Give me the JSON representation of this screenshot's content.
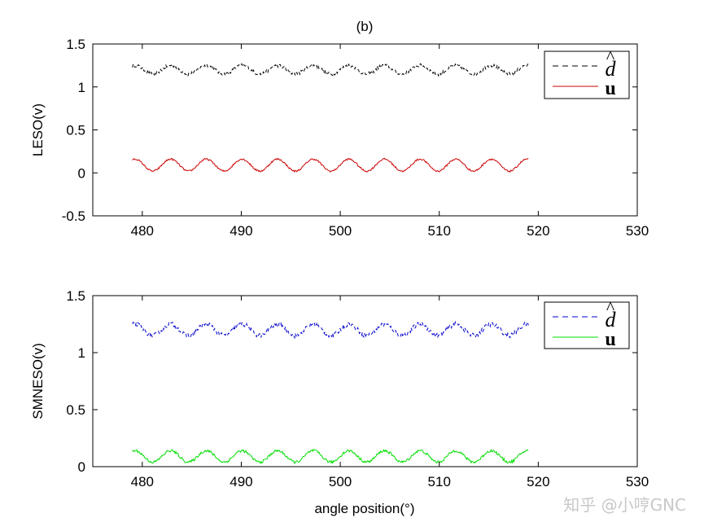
{
  "figure_title": "(b)",
  "watermark": "知乎 @小哼GNC",
  "chart_data": [
    {
      "type": "line",
      "ylabel": "LESO(v)",
      "xlabel": "",
      "xlim": [
        475,
        530
      ],
      "ylim": [
        -0.5,
        1.5
      ],
      "xticks": [
        "480",
        "490",
        "500",
        "510",
        "520",
        "530"
      ],
      "yticks": [
        "-0.5",
        "0",
        "0.5",
        "1",
        "1.5"
      ],
      "grid": false,
      "legend_position": "top-right",
      "series": [
        {
          "name": "d-hat",
          "legend_base": "d",
          "legend_accent": "^",
          "color": "#000000",
          "dash": true,
          "x_start": 479,
          "x_end": 519,
          "mean": 1.2,
          "amplitude": 0.05,
          "period": 3.6,
          "noise": 0.02
        },
        {
          "name": "u",
          "legend_base": "u",
          "legend_accent": "",
          "color": "#cc0000",
          "dash": false,
          "x_start": 479,
          "x_end": 519,
          "mean": 0.09,
          "amplitude": 0.07,
          "period": 3.6,
          "noise": 0.01
        }
      ]
    },
    {
      "type": "line",
      "ylabel": "SMNESO(v)",
      "xlabel": "angle position(°)",
      "xlim": [
        475,
        530
      ],
      "ylim": [
        0,
        1.5
      ],
      "xticks": [
        "480",
        "490",
        "500",
        "510",
        "520",
        "530"
      ],
      "yticks": [
        "0",
        "0.5",
        "1",
        "1.5"
      ],
      "grid": false,
      "legend_position": "top-right",
      "series": [
        {
          "name": "d-hat",
          "legend_base": "d",
          "legend_accent": "^",
          "color": "#0000cc",
          "dash": true,
          "x_start": 479,
          "x_end": 519,
          "mean": 1.2,
          "amplitude": 0.05,
          "period": 3.6,
          "noise": 0.02
        },
        {
          "name": "u",
          "legend_base": "u",
          "legend_accent": "",
          "color": "#00dd00",
          "dash": false,
          "x_start": 479,
          "x_end": 519,
          "mean": 0.09,
          "amplitude": 0.05,
          "period": 3.6,
          "noise": 0.012
        }
      ]
    }
  ]
}
